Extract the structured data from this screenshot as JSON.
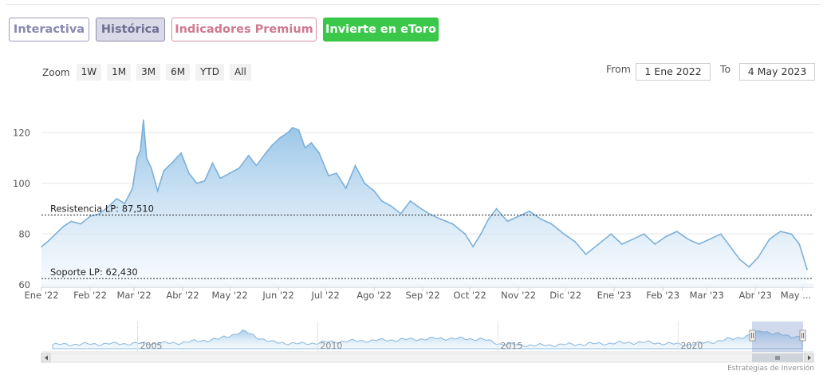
{
  "tabs": [
    {
      "label": "Interactiva"
    },
    {
      "label": "Histórica"
    },
    {
      "label": "Indicadores Premium"
    },
    {
      "label": "Invierte en eToro"
    }
  ],
  "zoom": {
    "label": "Zoom",
    "buttons": [
      "1W",
      "1M",
      "3M",
      "6M",
      "YTD",
      "All"
    ]
  },
  "range": {
    "from_label": "From",
    "from_value": "1 Ene 2022",
    "to_label": "To",
    "to_value": "4 May 2023"
  },
  "colors": {
    "line": "#7cb0da",
    "fill_top": "#90c0e6",
    "fill_bottom": "#f4f9fd",
    "accent_green": "#3bc84a"
  },
  "chart_data": {
    "type": "area",
    "title": "",
    "xlabel": "",
    "ylabel": "",
    "ylim": [
      59,
      133
    ],
    "grid": true,
    "x_tick_labels": [
      "Ene '22",
      "Feb '22",
      "Mar '22",
      "Abr '22",
      "May '22",
      "Jun '22",
      "Jul '22",
      "Ago '22",
      "Sep '22",
      "Oct '22",
      "Nov '22",
      "Dic '22",
      "Ene '23",
      "Feb '23",
      "Mar '23",
      "Abr '23",
      "May ..."
    ],
    "y_ticks": [
      60,
      80,
      100,
      120
    ],
    "series": [
      {
        "points": [
          [
            "2022-01-01",
            75
          ],
          [
            "2022-01-05",
            77
          ],
          [
            "2022-01-10",
            80
          ],
          [
            "2022-01-15",
            83
          ],
          [
            "2022-01-20",
            85
          ],
          [
            "2022-01-26",
            84
          ],
          [
            "2022-02-01",
            87
          ],
          [
            "2022-02-07",
            88
          ],
          [
            "2022-02-13",
            91
          ],
          [
            "2022-02-18",
            94
          ],
          [
            "2022-02-23",
            92
          ],
          [
            "2022-02-28",
            98
          ],
          [
            "2022-03-03",
            110
          ],
          [
            "2022-03-05",
            113
          ],
          [
            "2022-03-07",
            125
          ],
          [
            "2022-03-09",
            110
          ],
          [
            "2022-03-12",
            106
          ],
          [
            "2022-03-16",
            97
          ],
          [
            "2022-03-20",
            105
          ],
          [
            "2022-03-25",
            108
          ],
          [
            "2022-03-31",
            112
          ],
          [
            "2022-04-05",
            104
          ],
          [
            "2022-04-10",
            100
          ],
          [
            "2022-04-15",
            101
          ],
          [
            "2022-04-20",
            108
          ],
          [
            "2022-04-25",
            102
          ],
          [
            "2022-05-01",
            104
          ],
          [
            "2022-05-07",
            106
          ],
          [
            "2022-05-13",
            111
          ],
          [
            "2022-05-18",
            107
          ],
          [
            "2022-05-24",
            112
          ],
          [
            "2022-05-28",
            115
          ],
          [
            "2022-06-02",
            118
          ],
          [
            "2022-06-07",
            120
          ],
          [
            "2022-06-10",
            122
          ],
          [
            "2022-06-14",
            121
          ],
          [
            "2022-06-18",
            114
          ],
          [
            "2022-06-22",
            116
          ],
          [
            "2022-06-27",
            112
          ],
          [
            "2022-07-03",
            103
          ],
          [
            "2022-07-08",
            104
          ],
          [
            "2022-07-14",
            98
          ],
          [
            "2022-07-20",
            107
          ],
          [
            "2022-07-26",
            100
          ],
          [
            "2022-08-01",
            97
          ],
          [
            "2022-08-06",
            93
          ],
          [
            "2022-08-12",
            91
          ],
          [
            "2022-08-18",
            88
          ],
          [
            "2022-08-24",
            93
          ],
          [
            "2022-08-31",
            90
          ],
          [
            "2022-09-05",
            88
          ],
          [
            "2022-09-12",
            86
          ],
          [
            "2022-09-20",
            84
          ],
          [
            "2022-09-28",
            80
          ],
          [
            "2022-10-03",
            75
          ],
          [
            "2022-10-08",
            80
          ],
          [
            "2022-10-13",
            86
          ],
          [
            "2022-10-18",
            90
          ],
          [
            "2022-10-25",
            85
          ],
          [
            "2022-11-01",
            87
          ],
          [
            "2022-11-08",
            89
          ],
          [
            "2022-11-15",
            86
          ],
          [
            "2022-11-22",
            84
          ],
          [
            "2022-11-30",
            80
          ],
          [
            "2022-12-07",
            77
          ],
          [
            "2022-12-14",
            72
          ],
          [
            "2022-12-22",
            76
          ],
          [
            "2022-12-30",
            80
          ],
          [
            "2023-01-06",
            76
          ],
          [
            "2023-01-13",
            78
          ],
          [
            "2023-01-20",
            80
          ],
          [
            "2023-01-27",
            76
          ],
          [
            "2023-02-03",
            79
          ],
          [
            "2023-02-10",
            81
          ],
          [
            "2023-02-17",
            78
          ],
          [
            "2023-02-24",
            76
          ],
          [
            "2023-03-03",
            78
          ],
          [
            "2023-03-10",
            80
          ],
          [
            "2023-03-16",
            75
          ],
          [
            "2023-03-22",
            70
          ],
          [
            "2023-03-28",
            67
          ],
          [
            "2023-04-03",
            71
          ],
          [
            "2023-04-10",
            78
          ],
          [
            "2023-04-17",
            81
          ],
          [
            "2023-04-24",
            80
          ],
          [
            "2023-04-29",
            76
          ],
          [
            "2023-05-04",
            66
          ]
        ]
      }
    ],
    "plot_lines": [
      {
        "label": "Resistencia LP: 87,510",
        "value": 87.51
      },
      {
        "label": "Soporte LP: 62,430",
        "value": 62.43
      }
    ],
    "navigator": {
      "x_tick_labels": [
        "2005",
        "2010",
        "2015",
        "2020"
      ],
      "selected_range": [
        "2022-01-01",
        "2023-05-04"
      ]
    }
  },
  "credit": "Estrategias de Inversión"
}
